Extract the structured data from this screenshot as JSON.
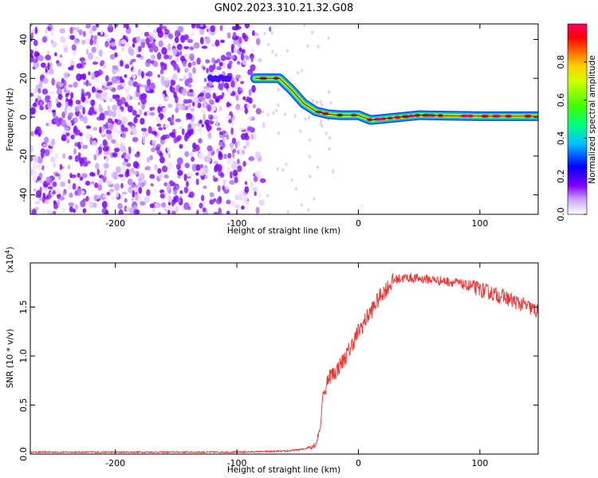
{
  "title": "GN02.2023.310.21.32.G08",
  "chart_data": [
    {
      "type": "heatmap",
      "xlabel": "Height of straight line (km)",
      "ylabel": "Frequency (Hz)",
      "xlim": [
        -270,
        148
      ],
      "ylim": [
        -50,
        48
      ],
      "xticks": [
        -200,
        -100,
        0,
        100
      ],
      "yticks": [
        -40,
        -20,
        0,
        20,
        40
      ],
      "noise_region_x": [
        -270,
        -80
      ],
      "ridge": {
        "x": [
          -85,
          -65,
          -55,
          -45,
          -35,
          -25,
          -15,
          0,
          10,
          50,
          100,
          148
        ],
        "y": [
          20,
          20,
          14,
          7,
          3,
          1.5,
          1,
          1,
          -1.5,
          1,
          0.5,
          0.5
        ]
      },
      "colorbar": {
        "label": "Normalized spectral amplitude",
        "ticks": [
          0.0,
          0.2,
          0.4,
          0.6,
          0.8
        ],
        "range": [
          0,
          1
        ],
        "colormap": [
          "#ffffff",
          "#9b30ff",
          "#0000ff",
          "#00bfff",
          "#00ff7f",
          "#7fff00",
          "#ffff00",
          "#ff7f00",
          "#ff0000",
          "#ff0066"
        ]
      }
    },
    {
      "type": "line",
      "xlabel": "Height of straight line (km)",
      "ylabel": "SNR (10 * v/v)",
      "multiplier": "(x10",
      "multiplier_exp": "4",
      "multiplier_close": ")",
      "xlim": [
        -270,
        148
      ],
      "ylim": [
        0,
        1.95
      ],
      "xticks": [
        -200,
        -100,
        0,
        100
      ],
      "yticks": [
        "0.0",
        "0.5",
        "1.0",
        "1.5"
      ],
      "series": [
        {
          "color": "#ee3333",
          "x": [
            -270,
            -200,
            -100,
            -60,
            -45,
            -35,
            -31,
            -29,
            -27,
            -25,
            -20,
            -10,
            0,
            10,
            20,
            30,
            40,
            60,
            80,
            100,
            120,
            140,
            148
          ],
          "y": [
            0.02,
            0.02,
            0.02,
            0.03,
            0.05,
            0.1,
            0.3,
            0.65,
            0.62,
            0.8,
            0.82,
            1.0,
            1.25,
            1.45,
            1.65,
            1.78,
            1.8,
            1.78,
            1.75,
            1.68,
            1.6,
            1.5,
            1.45
          ]
        }
      ]
    }
  ]
}
